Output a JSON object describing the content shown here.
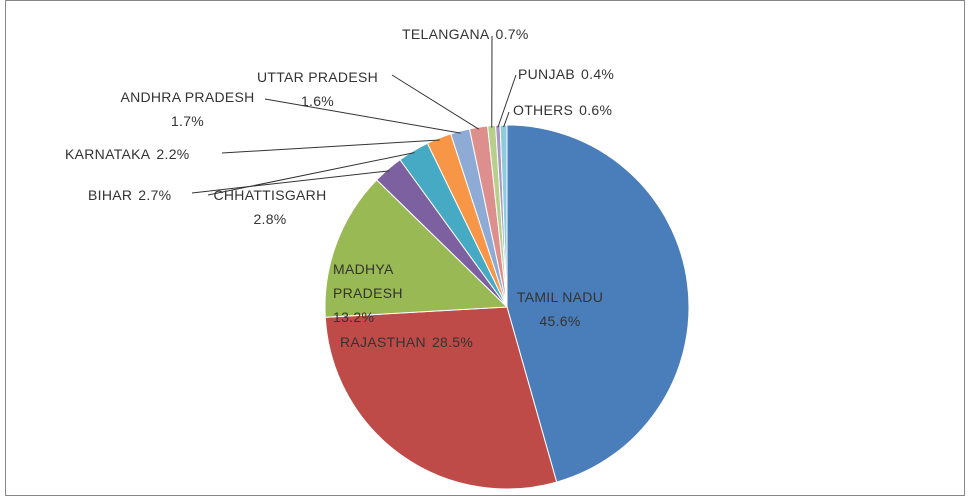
{
  "chart_data": {
    "type": "pie",
    "categories": [
      "TAMIL NADU",
      "RAJASTHAN",
      "MADHYA PRADESH",
      "BIHAR",
      "CHHATTISGARH",
      "KARNATAKA",
      "ANDHRA PRADESH",
      "UTTAR PRADESH",
      "TELANGANA",
      "PUNJAB",
      "OTHERS"
    ],
    "values": [
      45.6,
      28.5,
      13.2,
      2.7,
      2.8,
      2.2,
      1.7,
      1.6,
      0.7,
      0.4,
      0.6
    ],
    "value_labels": [
      "45.6%",
      "28.5%",
      "13.2%",
      "2.7%",
      "2.8%",
      "2.2%",
      "1.7%",
      "1.6%",
      "0.7%",
      "0.4%",
      "0.6%"
    ],
    "colors": [
      "#4a7ebb",
      "#be4b48",
      "#98b954",
      "#7d60a0",
      "#46aac5",
      "#f79646",
      "#8eabd6",
      "#dd8f8d",
      "#b6cf8b",
      "#a897c3",
      "#8dcbdc"
    ]
  }
}
